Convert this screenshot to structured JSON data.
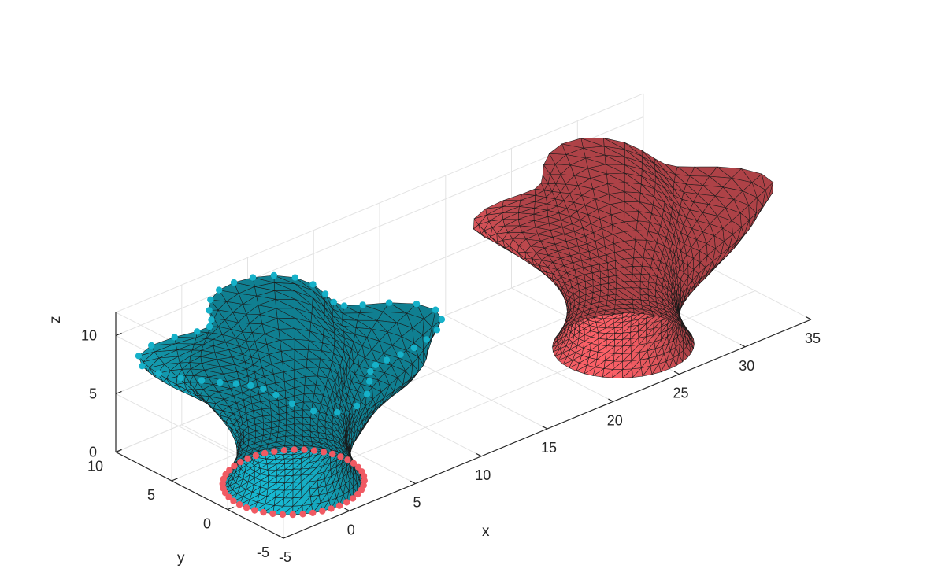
{
  "chart_data": {
    "type": "surface3d",
    "xlabel": "x",
    "ylabel": "y",
    "zlabel": "z",
    "xlim": [
      -5,
      35
    ],
    "ylim": [
      -5,
      10
    ],
    "zlim": [
      0,
      12
    ],
    "xticks": [
      "-5",
      "0",
      "5",
      "10",
      "15",
      "20",
      "25",
      "30",
      "35"
    ],
    "yticks": [
      "-5",
      "0",
      "5",
      "10"
    ],
    "zticks": [
      "0",
      "5",
      "10"
    ],
    "grid": true,
    "series": [
      {
        "surface": "deformed twisted vase (triangulated mesh)",
        "center_x": 0,
        "center_y": 0,
        "height": 12,
        "face_color": "#16b1c9",
        "edge_color": "#1a1a1a",
        "top_marker_color": "#16b1c9",
        "bottom_marker_color": "#f05a63"
      },
      {
        "surface": "target twisted vase (triangulated mesh)",
        "center_x": 25,
        "center_y": 0,
        "height": 12,
        "face_color": "#f25c63",
        "edge_color": "#1a1a1a"
      }
    ]
  }
}
